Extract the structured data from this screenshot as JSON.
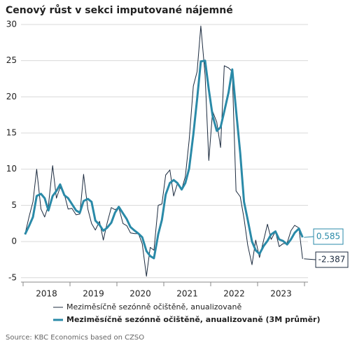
{
  "chart_data": {
    "type": "line",
    "title": "Cenový růst v sekci imputované nájemné",
    "source": "Source: KBC Economics based on CZSO",
    "x": [
      2018.04,
      2018.13,
      2018.21,
      2018.29,
      2018.38,
      2018.46,
      2018.54,
      2018.63,
      2018.71,
      2018.79,
      2018.88,
      2018.96,
      2019.04,
      2019.13,
      2019.21,
      2019.29,
      2019.38,
      2019.46,
      2019.54,
      2019.63,
      2019.71,
      2019.79,
      2019.88,
      2019.96,
      2020.04,
      2020.13,
      2020.21,
      2020.29,
      2020.38,
      2020.46,
      2020.54,
      2020.63,
      2020.71,
      2020.79,
      2020.88,
      2020.96,
      2021.04,
      2021.13,
      2021.21,
      2021.29,
      2021.38,
      2021.46,
      2021.54,
      2021.63,
      2021.71,
      2021.79,
      2021.88,
      2021.96,
      2022.04,
      2022.13,
      2022.21,
      2022.29,
      2022.38,
      2022.46,
      2022.54,
      2022.63,
      2022.71,
      2022.79,
      2022.88,
      2022.96,
      2023.04,
      2023.13,
      2023.21,
      2023.29,
      2023.38,
      2023.46,
      2023.54,
      2023.63,
      2023.71,
      2023.79,
      2023.88,
      2023.96
    ],
    "series": [
      {
        "name": "Meziměsíčně sezónně očištěně, anualizovaně",
        "color": "#1c2b3f",
        "width": 1,
        "values": [
          1.0,
          3.5,
          5.5,
          10.0,
          4.5,
          3.4,
          5.0,
          10.5,
          6.0,
          7.5,
          6.5,
          4.5,
          4.6,
          3.7,
          3.8,
          9.3,
          4.5,
          2.5,
          1.6,
          2.8,
          0.2,
          2.5,
          4.7,
          4.4,
          4.7,
          2.5,
          2.2,
          1.2,
          1.1,
          1.1,
          -0.3,
          -4.8,
          -0.8,
          -1.2,
          5.0,
          5.2,
          9.2,
          9.9,
          6.3,
          8.0,
          7.2,
          9.0,
          14.0,
          21.5,
          23.5,
          29.8,
          23.0,
          11.2,
          18.0,
          16.5,
          13.0,
          24.3,
          24.0,
          23.5,
          7.0,
          6.2,
          3.2,
          -0.5,
          -3.2,
          0.2,
          -2.2,
          0.2,
          2.4,
          0.3,
          1.4,
          -0.7,
          -0.3,
          -0.2,
          1.5,
          2.25,
          1.9,
          -2.387
        ]
      },
      {
        "name": "Meziměsíčně sezónně očištěně, anualizovaně (3M průměr)",
        "color": "#2a8aa8",
        "width": 3,
        "values": [
          1.0,
          2.2,
          3.4,
          6.3,
          6.6,
          6.0,
          4.3,
          6.3,
          7.0,
          7.9,
          6.4,
          6.0,
          5.2,
          4.3,
          4.0,
          5.6,
          5.9,
          5.5,
          2.9,
          2.3,
          1.5,
          1.9,
          2.6,
          4.0,
          4.8,
          3.9,
          3.1,
          2.0,
          1.5,
          1.1,
          0.6,
          -1.3,
          -2.0,
          -2.3,
          1.0,
          3.0,
          6.5,
          8.1,
          8.5,
          8.1,
          7.2,
          8.1,
          10.1,
          14.8,
          19.7,
          24.9,
          25.0,
          21.0,
          17.4,
          15.3,
          15.8,
          18.0,
          20.6,
          23.8,
          18.2,
          12.2,
          5.5,
          3.0,
          0.0,
          -1.2,
          -1.7,
          -0.6,
          0.1,
          1.0,
          1.4,
          0.3,
          0.1,
          -0.4,
          0.3,
          1.2,
          1.8,
          0.585
        ]
      }
    ],
    "xlim": [
      2018,
      2024
    ],
    "xticks": [
      {
        "value": 2018.5,
        "label": "2018"
      },
      {
        "value": 2019.5,
        "label": "2019"
      },
      {
        "value": 2020.5,
        "label": "2020"
      },
      {
        "value": 2021.5,
        "label": "2021"
      },
      {
        "value": 2022.5,
        "label": "2022"
      },
      {
        "value": 2023.5,
        "label": "2023"
      }
    ],
    "ylim": [
      -5.6,
      30
    ],
    "yticks": [
      -5,
      0,
      5,
      10,
      15,
      20,
      25,
      30
    ],
    "grid": true
  }
}
